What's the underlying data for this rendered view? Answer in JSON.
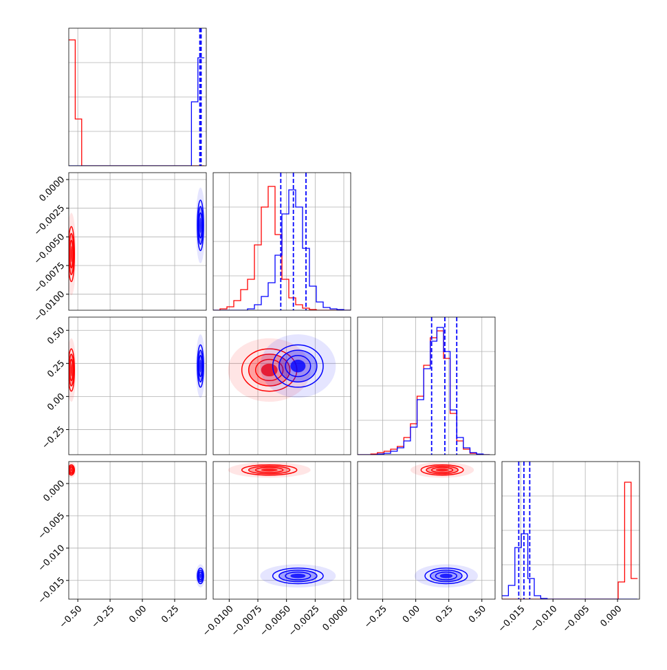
{
  "chart_data": {
    "type": "corner",
    "grid": true,
    "hist_ylim": [
      0,
      200
    ],
    "parameters": [
      {
        "lim": [
          -0.57,
          0.495
        ],
        "ticks": [
          {
            "value": -0.5,
            "label": "−0.50"
          },
          {
            "value": -0.25,
            "label": "−0.25"
          },
          {
            "value": 0,
            "label": "0.00"
          },
          {
            "value": 0.25,
            "label": "0.25"
          }
        ],
        "bins": [
          -0.57,
          -0.52,
          -0.47,
          -0.42,
          -0.37,
          -0.32,
          -0.27,
          -0.22,
          -0.17,
          -0.12,
          -0.07,
          -0.02,
          0.03,
          0.08,
          0.13,
          0.18,
          0.23,
          0.28,
          0.33,
          0.38,
          0.43,
          0.48
        ]
      },
      {
        "lim": [
          -0.0114,
          0.0006
        ],
        "ticks": [
          {
            "value": -0.01,
            "label": "−0.0100"
          },
          {
            "value": -0.0075,
            "label": "−0.0075"
          },
          {
            "value": -0.005,
            "label": "−0.0050"
          },
          {
            "value": -0.0025,
            "label": "−0.0025"
          },
          {
            "value": 0,
            "label": "0.0000"
          }
        ],
        "bins": [
          -0.0114,
          -0.0108,
          -0.0102,
          -0.0096,
          -0.009,
          -0.0084,
          -0.0078,
          -0.0072,
          -0.0066,
          -0.006,
          -0.0054,
          -0.0048,
          -0.0042,
          -0.0036,
          -0.003,
          -0.0024,
          -0.0018,
          -0.0012,
          -0.0006,
          0,
          0.0006
        ]
      },
      {
        "lim": [
          -0.44,
          0.6
        ],
        "ticks": [
          {
            "value": -0.25,
            "label": "−0.25"
          },
          {
            "value": 0,
            "label": "0.00"
          },
          {
            "value": 0.25,
            "label": "0.25"
          },
          {
            "value": 0.5,
            "label": "0.50"
          }
        ],
        "bins": [
          -0.44,
          -0.39,
          -0.34,
          -0.29,
          -0.24,
          -0.19,
          -0.14,
          -0.09,
          -0.04,
          0.01,
          0.06,
          0.11,
          0.16,
          0.21,
          0.26,
          0.31,
          0.36,
          0.41,
          0.46,
          0.51,
          0.56
        ]
      },
      {
        "lim": [
          -0.0179,
          0.0034
        ],
        "ticks": [
          {
            "value": -0.015,
            "label": "−0.015"
          },
          {
            "value": -0.01,
            "label": "−0.010"
          },
          {
            "value": -0.005,
            "label": "−0.005"
          },
          {
            "value": 0,
            "label": "0.000"
          }
        ],
        "bins": [
          -0.0179,
          -0.0169,
          -0.0159,
          -0.0149,
          -0.0139,
          -0.0129,
          -0.0119,
          -0.0109,
          -0.0099,
          -0.0089,
          -0.0079,
          -0.0069,
          -0.0059,
          -0.0049,
          -0.0039,
          -0.0029,
          -0.0019,
          -0.0009,
          0.0001,
          0.0011,
          0.0021,
          0.0031
        ]
      }
    ],
    "series": [
      {
        "color": "#ff0000",
        "hist": [
          [
            183,
            68,
            0,
            0,
            0,
            0,
            0,
            0,
            0,
            0,
            0,
            0,
            0,
            0,
            0,
            0,
            0,
            0,
            0,
            0,
            0
          ],
          [
            0,
            2,
            5,
            14,
            30,
            45,
            95,
            150,
            180,
            110,
            45,
            18,
            8,
            3,
            1,
            0,
            0,
            0,
            0,
            0
          ],
          [
            0,
            0,
            1,
            3,
            5,
            8,
            12,
            25,
            45,
            85,
            130,
            170,
            180,
            140,
            60,
            20,
            8,
            2,
            0,
            0
          ],
          [
            0,
            0,
            0,
            0,
            0,
            0,
            0,
            0,
            0,
            0,
            0,
            0,
            0,
            0,
            0,
            0,
            0,
            0,
            25,
            170,
            30
          ]
        ],
        "mean": [
          -0.55,
          -0.0065,
          0.2,
          0.0021
        ],
        "spread": [
          0.012,
          0.0012,
          0.08,
          0.0004
        ]
      },
      {
        "color": "#0000ff",
        "hist": [
          [
            0,
            0,
            0,
            0,
            0,
            0,
            0,
            0,
            0,
            0,
            0,
            0,
            0,
            0,
            0,
            0,
            0,
            0,
            0,
            93,
            157
          ],
          [
            0,
            0,
            0,
            0,
            0,
            2,
            8,
            20,
            40,
            80,
            140,
            175,
            150,
            90,
            35,
            12,
            4,
            2,
            1,
            0
          ],
          [
            0,
            0,
            0,
            1,
            2,
            5,
            10,
            20,
            40,
            80,
            125,
            165,
            185,
            150,
            65,
            25,
            10,
            3,
            1,
            0
          ],
          [
            5,
            20,
            75,
            95,
            30,
            5,
            1,
            0,
            0,
            0,
            0,
            0,
            0,
            0,
            0,
            0,
            0,
            0,
            0,
            0,
            0
          ]
        ],
        "mean": [
          0.45,
          -0.004,
          0.23,
          -0.0143
        ],
        "spread": [
          0.012,
          0.0011,
          0.08,
          0.0006
        ],
        "quantiles": [
          [
            0.445,
            0.45,
            0.455
          ],
          [
            -0.0055,
            -0.0044,
            -0.0033
          ],
          [
            0.12,
            0.22,
            0.31
          ],
          [
            -0.0153,
            -0.0145,
            -0.0136
          ]
        ]
      }
    ]
  }
}
